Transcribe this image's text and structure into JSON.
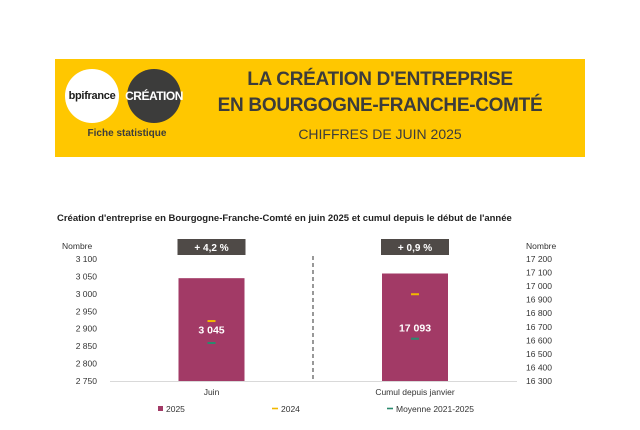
{
  "header": {
    "logo_left": "bpifrance",
    "logo_right": "CRÉATION",
    "fiche": "Fiche statistique",
    "title_line1": "LA CRÉATION D'ENTREPRISE",
    "title_line2": "EN BOURGOGNE-FRANCHE-COMTÉ",
    "subtitle": "CHIFFRES DE JUIN 2025",
    "colors": {
      "banner": "#ffc700",
      "title": "#3c3c3b"
    }
  },
  "chart_data": {
    "type": "bar",
    "title": "Création d'entreprise en Bourgogne-Franche-Comté en juin 2025 et cumul depuis le début de l'année",
    "panels": [
      {
        "category": "Juin",
        "axis_side": "left",
        "ylabel": "Nombre",
        "ylim": [
          2750,
          3100
        ],
        "yticks": [
          2750,
          2800,
          2850,
          2900,
          2950,
          3000,
          3050,
          3100
        ],
        "ytick_labels": [
          "2 750",
          "2 800",
          "2 850",
          "2 900",
          "2 950",
          "3 000",
          "3 050",
          "3 100"
        ],
        "value_2025": 3045,
        "value_2025_label": "3 045",
        "value_2024": 2922,
        "value_avg": 2859,
        "change_label": "+ 4,2 %"
      },
      {
        "category": "Cumul depuis janvier",
        "axis_side": "right",
        "ylabel": "Nombre",
        "ylim": [
          16300,
          17200
        ],
        "yticks": [
          16300,
          16400,
          16500,
          16600,
          16700,
          16800,
          16900,
          17000,
          17100,
          17200
        ],
        "ytick_labels": [
          "16 300",
          "16 400",
          "16 500",
          "16 600",
          "16 700",
          "16 800",
          "16 900",
          "17 000",
          "17 100",
          "17 200"
        ],
        "value_2025": 17093,
        "value_2025_label": "17 093",
        "value_2024": 16940,
        "value_avg": 16612,
        "change_label": "+ 0,9 %"
      }
    ],
    "legend": [
      {
        "label": "2025",
        "color": "#a23a66",
        "shape": "square"
      },
      {
        "label": "2024",
        "color": "#f2b800",
        "shape": "dash"
      },
      {
        "label": "Moyenne 2021-2025",
        "color": "#2a8a6e",
        "shape": "dash"
      }
    ],
    "colors": {
      "bar": "#a23a66",
      "badge": "#4f4a47",
      "y2024": "#f2b800",
      "avg": "#2a8a6e"
    }
  }
}
